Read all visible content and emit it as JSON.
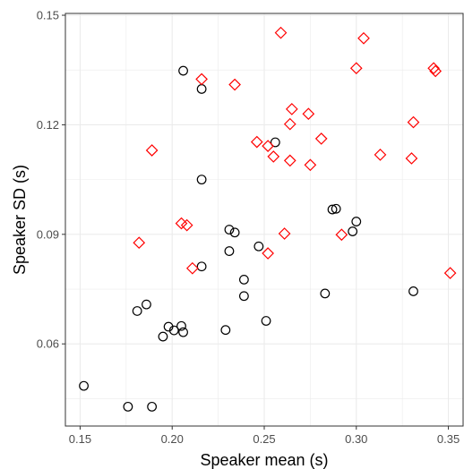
{
  "chart_data": {
    "type": "scatter",
    "xlabel": "Speaker mean (s)",
    "ylabel": "Speaker SD (s)",
    "xlim": [
      0.142,
      0.358
    ],
    "ylim": [
      0.0375,
      0.1505
    ],
    "x_ticks": [
      0.15,
      0.2,
      0.25,
      0.3,
      0.35
    ],
    "x_tick_labels": [
      "0.15",
      "0.20",
      "0.25",
      "0.30",
      "0.35"
    ],
    "y_ticks": [
      0.06,
      0.09,
      0.12,
      0.15
    ],
    "y_tick_labels": [
      "0.06",
      "0.09",
      "0.12",
      "0.15"
    ],
    "grid": true,
    "legend": "none",
    "colors": {
      "circle": "#000000",
      "diamond": "#ff0000",
      "grid": "#ebebeb",
      "panel_border": "#333333"
    },
    "series": [
      {
        "marker": "circle",
        "points": [
          [
            0.152,
            0.0485
          ],
          [
            0.176,
            0.0428
          ],
          [
            0.189,
            0.0428
          ],
          [
            0.181,
            0.069
          ],
          [
            0.186,
            0.0708
          ],
          [
            0.198,
            0.0647
          ],
          [
            0.201,
            0.0637
          ],
          [
            0.195,
            0.062
          ],
          [
            0.205,
            0.0649
          ],
          [
            0.206,
            0.0632
          ],
          [
            0.206,
            0.1348
          ],
          [
            0.216,
            0.1298
          ],
          [
            0.216,
            0.105
          ],
          [
            0.216,
            0.0812
          ],
          [
            0.229,
            0.0638
          ],
          [
            0.231,
            0.0854
          ],
          [
            0.231,
            0.0913
          ],
          [
            0.234,
            0.0905
          ],
          [
            0.239,
            0.0776
          ],
          [
            0.239,
            0.0731
          ],
          [
            0.247,
            0.0867
          ],
          [
            0.251,
            0.0663
          ],
          [
            0.256,
            0.1152
          ],
          [
            0.283,
            0.0738
          ],
          [
            0.287,
            0.0968
          ],
          [
            0.289,
            0.097
          ],
          [
            0.298,
            0.0908
          ],
          [
            0.3,
            0.0935
          ],
          [
            0.331,
            0.0744
          ]
        ]
      },
      {
        "marker": "diamond",
        "points": [
          [
            0.182,
            0.0877
          ],
          [
            0.189,
            0.113
          ],
          [
            0.205,
            0.093
          ],
          [
            0.208,
            0.0925
          ],
          [
            0.211,
            0.0807
          ],
          [
            0.216,
            0.1325
          ],
          [
            0.234,
            0.131
          ],
          [
            0.246,
            0.1153
          ],
          [
            0.252,
            0.1142
          ],
          [
            0.252,
            0.0848
          ],
          [
            0.255,
            0.1113
          ],
          [
            0.259,
            0.1452
          ],
          [
            0.261,
            0.0902
          ],
          [
            0.264,
            0.1102
          ],
          [
            0.264,
            0.1202
          ],
          [
            0.265,
            0.1243
          ],
          [
            0.274,
            0.123
          ],
          [
            0.275,
            0.109
          ],
          [
            0.281,
            0.1162
          ],
          [
            0.292,
            0.0899
          ],
          [
            0.3,
            0.1355
          ],
          [
            0.304,
            0.1437
          ],
          [
            0.313,
            0.1118
          ],
          [
            0.33,
            0.1108
          ],
          [
            0.331,
            0.1207
          ],
          [
            0.342,
            0.1355
          ],
          [
            0.343,
            0.1347
          ],
          [
            0.351,
            0.0794
          ]
        ]
      }
    ]
  }
}
